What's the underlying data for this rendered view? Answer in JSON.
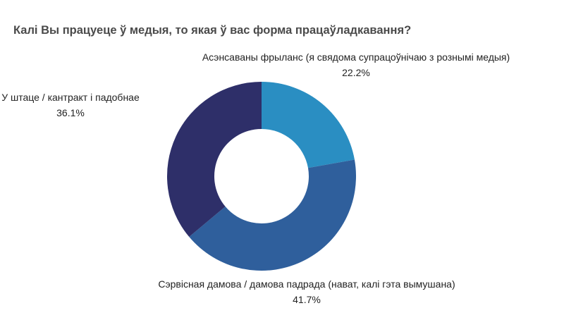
{
  "title": "Калі Вы працуеце ў медыя, то якая ў вас форма працаўладкавання?",
  "chart_data": {
    "type": "pie",
    "subtype": "donut",
    "title": "Калі Вы працуеце ў медыя, то якая ў вас форма працаўладкавання?",
    "categories": [
      "Асэнсаваны фрыланс (я свядома супрацоўнічаю з рознымі медыя)",
      "Сэрвісная дамова / дамова падрада (нават, калі гэта вымушана)",
      "У штаце / кантракт і падобнае"
    ],
    "values": [
      22.2,
      41.7,
      36.1
    ],
    "value_labels": [
      "22.2%",
      "41.7%",
      "36.1%"
    ],
    "colors": [
      "#2a8ec2",
      "#2f5f9c",
      "#2e2f69"
    ],
    "start_angle_deg": 0,
    "direction": "clockwise",
    "legend": "none (direct labels)"
  },
  "labels": {
    "freelance": {
      "name": "Асэнсаваны фрыланс (я свядома супрацоўнічаю з рознымі медыя)",
      "value": "22.2%"
    },
    "service": {
      "name": "Сэрвісная дамова / дамова падрада (нават, калі гэта вымушана)",
      "value": "41.7%"
    },
    "staff": {
      "name": "У штаце / кантракт і падобнае",
      "value": "36.1%"
    }
  }
}
